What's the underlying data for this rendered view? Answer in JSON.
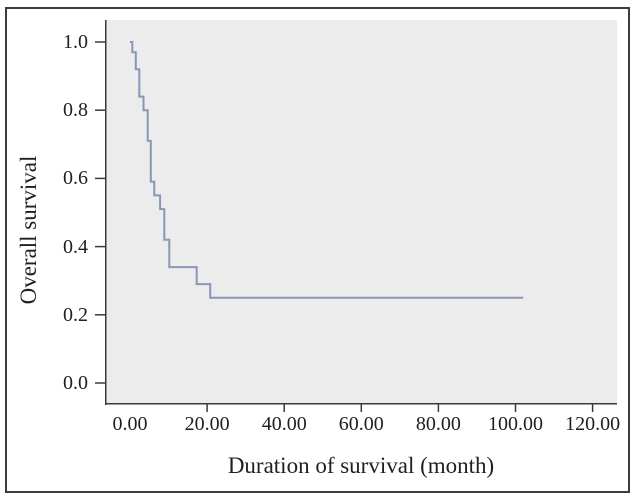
{
  "figure": {
    "kind": "kaplan-meier-survival-figure"
  },
  "chart_data": {
    "type": "line",
    "subtype": "step-survival-curve",
    "title": "",
    "xlabel": "Duration of survival (month)",
    "ylabel": "Overall survival",
    "x_tick_labels": [
      "0.00",
      "20.00",
      "40.00",
      "60.00",
      "80.00",
      "100.00",
      "120.00"
    ],
    "x_tick_values": [
      0,
      20,
      40,
      60,
      80,
      100,
      120
    ],
    "y_tick_labels": [
      "1.0",
      "0.8",
      "0.6",
      "0.4",
      "0.2",
      "0.0"
    ],
    "y_tick_values": [
      1.0,
      0.8,
      0.6,
      0.4,
      0.2,
      0.0
    ],
    "xlim": [
      -6.5,
      126.5
    ],
    "ylim": [
      -0.06,
      1.06
    ],
    "grid": false,
    "legend": "none",
    "series": [
      {
        "name": "Overall survival",
        "color": "#8a96b8",
        "step_points": [
          [
            0,
            1.0
          ],
          [
            0.6,
            0.97
          ],
          [
            1.5,
            0.92
          ],
          [
            2.4,
            0.84
          ],
          [
            3.5,
            0.8
          ],
          [
            4.6,
            0.71
          ],
          [
            5.4,
            0.59
          ],
          [
            6.3,
            0.55
          ],
          [
            7.8,
            0.51
          ],
          [
            8.9,
            0.42
          ],
          [
            10.2,
            0.34
          ],
          [
            17.3,
            0.29
          ],
          [
            20.8,
            0.25
          ],
          [
            102,
            0.25
          ]
        ]
      }
    ],
    "colors": {
      "plot_bg": "#ececec",
      "line": "#8a96b8",
      "axis": "#3a3a3a",
      "text": "#1f1f1f",
      "frame_border": "#3c3c3c",
      "page_bg": "#ffffff"
    }
  }
}
